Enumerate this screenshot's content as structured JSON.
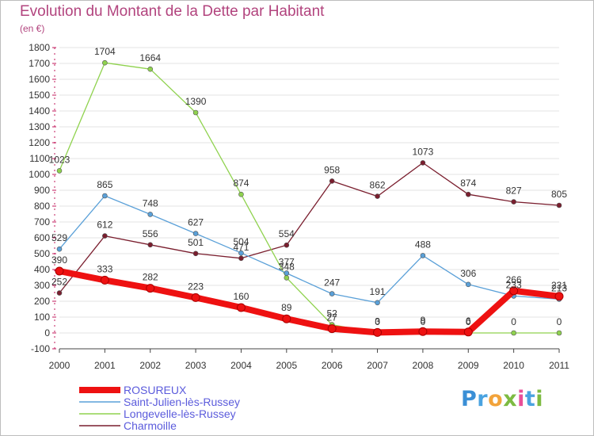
{
  "header": {
    "title": "Evolution du Montant de la Dette par Habitant",
    "unit": "(en €)"
  },
  "logo": {
    "text": "Proxiti"
  },
  "colors": {
    "title": "#b2447e",
    "axis": "#444444",
    "grid": "#e3e3e3",
    "label": "#333333"
  },
  "chart_data": {
    "type": "line",
    "title": "Evolution du Montant de la Dette par Habitant",
    "subtitle": "(en €)",
    "x": [
      "2000",
      "2001",
      "2002",
      "2003",
      "2004",
      "2005",
      "2006",
      "2007",
      "2008",
      "2009",
      "2010",
      "2011"
    ],
    "ylim": [
      -100,
      1800
    ],
    "yticks": [
      -100,
      0,
      100,
      200,
      300,
      400,
      500,
      600,
      700,
      800,
      900,
      1000,
      1100,
      1200,
      1300,
      1400,
      1500,
      1600,
      1700,
      1800
    ],
    "grid": true,
    "legend_position": "bottom-left",
    "series": [
      {
        "name": "Charmoille",
        "color": "#7a1e2e",
        "values": [
          252,
          612,
          556,
          501,
          471,
          554,
          958,
          862,
          1073,
          874,
          827,
          805
        ],
        "labels": [
          "252",
          "612",
          "556",
          "501",
          "471",
          "554",
          "958",
          "862",
          "1073",
          "874",
          "827",
          "805"
        ]
      },
      {
        "name": "Longevelle-lès-Russey",
        "color": "#8fd24e",
        "values": [
          1023,
          1704,
          1664,
          1390,
          874,
          348,
          52,
          0,
          0,
          0,
          0,
          0
        ],
        "labels": [
          "1023",
          "1704",
          "1664",
          "1390",
          "874",
          "348",
          "52",
          "0",
          "0",
          "0",
          "0",
          "0"
        ]
      },
      {
        "name": "Saint-Julien-lès-Russey",
        "color": "#5aa0d8",
        "values": [
          529,
          865,
          748,
          627,
          504,
          377,
          247,
          191,
          488,
          306,
          233,
          213
        ],
        "labels": [
          "529",
          "865",
          "748",
          "627",
          "504",
          "377",
          "247",
          "191",
          "488",
          "306",
          "233",
          "213"
        ]
      },
      {
        "name": "ROSUREUX",
        "color": "#ee1111",
        "values": [
          390,
          333,
          282,
          223,
          160,
          89,
          27,
          3,
          9,
          6,
          266,
          231
        ],
        "labels": [
          "390",
          "333",
          "282",
          "223",
          "160",
          "89",
          "27",
          "3",
          "9",
          "6",
          "266",
          "231"
        ]
      }
    ],
    "legend": [
      {
        "name": "ROSUREUX",
        "color": "#ee1111",
        "text_color": "#5b5bdc"
      },
      {
        "name": "Saint-Julien-lès-Russey",
        "color": "#5aa0d8",
        "text_color": "#5b5bdc"
      },
      {
        "name": "Longevelle-lès-Russey",
        "color": "#8fd24e",
        "text_color": "#5b5bdc"
      },
      {
        "name": "Charmoille",
        "color": "#7a1e2e",
        "text_color": "#5b5bdc"
      }
    ]
  }
}
